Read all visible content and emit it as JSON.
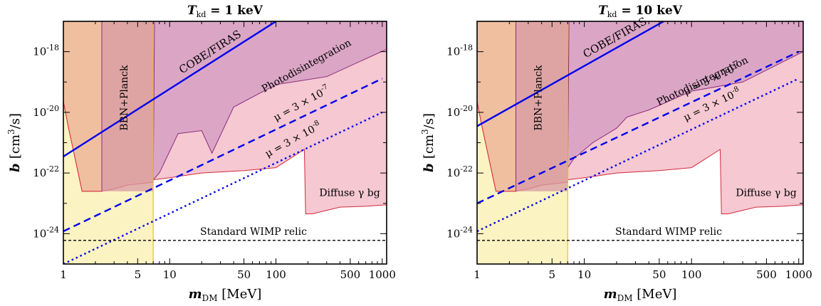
{
  "chart_data": [
    {
      "type": "area",
      "title": "T_kd = 1 keV",
      "xlabel": "m_DM [MeV]",
      "ylabel": "b [cm^3/s]",
      "xscale": "log",
      "yscale": "log",
      "xlim": [
        1,
        1100
      ],
      "ylim": [
        1e-25,
        1e-17
      ],
      "xticks": [
        1,
        5,
        10,
        50,
        100,
        500,
        1000
      ],
      "yticks": [
        {
          "value": 1e-24,
          "label": "10^-24"
        },
        {
          "value": 1e-22,
          "label": "10^-22"
        },
        {
          "value": 1e-20,
          "label": "10^-20"
        },
        {
          "value": 1e-18,
          "label": "10^-18"
        }
      ],
      "regions": [
        {
          "name": "yellow",
          "color": "#fbf3c2",
          "x": [
            1,
            7
          ],
          "y_top": 1e-17
        },
        {
          "name": "orange",
          "color": "#efbfa0",
          "points": [
            [
              1,
              1e-17
            ],
            [
              7,
              1e-17
            ],
            [
              7,
              5e-23
            ],
            [
              4,
              4e-23
            ],
            [
              3,
              3e-23
            ],
            [
              2.3,
              2.5e-23
            ],
            [
              1.5,
              2.5e-23
            ],
            [
              1.25,
              5e-22
            ],
            [
              1.12,
              3e-21
            ],
            [
              1,
              2.3e-20
            ]
          ]
        },
        {
          "name": "BBN+Planck",
          "color": "#d89ba6",
          "x": [
            2.3,
            7
          ],
          "y_top": 1e-17
        },
        {
          "name": "Photodisintegration",
          "color": "#d6a0c4",
          "points": [
            [
              7.2,
              1e-17
            ],
            [
              1100,
              1e-17
            ],
            [
              1100,
              1.2e-18
            ],
            [
              300,
              1.5e-19
            ],
            [
              100,
              8.2e-20
            ],
            [
              40,
              1.5e-20
            ],
            [
              25,
              4.5e-22
            ],
            [
              20,
              2.5e-21
            ],
            [
              12,
              2e-21
            ],
            [
              8,
              1e-22
            ],
            [
              7,
              6e-23
            ]
          ]
        },
        {
          "name": "Diffuse γ bg",
          "color": "#f5c8d2",
          "points": [
            [
              1,
              1e-17
            ],
            [
              1100,
              1e-17
            ],
            [
              1100,
              9e-24
            ],
            [
              700,
              8e-24
            ],
            [
              400,
              7.5e-24
            ],
            [
              220,
              4.5e-24
            ],
            [
              190,
              4.5e-24
            ],
            [
              185,
              6e-22
            ],
            [
              100,
              1.5e-22
            ],
            [
              50,
              1.2e-22
            ],
            [
              20,
              1e-22
            ],
            [
              10,
              7e-23
            ],
            [
              7,
              6e-23
            ],
            [
              4,
              4e-23
            ],
            [
              3,
              3e-23
            ],
            [
              2.3,
              2.5e-23
            ],
            [
              1.5,
              2.5e-23
            ],
            [
              1.25,
              5e-22
            ],
            [
              1.12,
              3e-21
            ],
            [
              1,
              2.3e-20
            ]
          ]
        }
      ],
      "lines": [
        {
          "name": "COBE/FIRAS",
          "style": "solid",
          "color": "#0000ee",
          "x": [
            1,
            100
          ],
          "y": [
            3.5e-22,
            1e-17
          ]
        },
        {
          "name": "μ = 3 × 10^-7",
          "style": "dashed",
          "color": "#0000ee",
          "x": [
            1,
            1000
          ],
          "y": [
            1.2e-24,
            1.3e-19
          ]
        },
        {
          "name": "μ = 3 × 10^-8",
          "style": "dotted",
          "color": "#0000ee",
          "x": [
            1,
            1000
          ],
          "y": [
            1e-25,
            1e-20
          ]
        },
        {
          "name": "Standard WIMP relic",
          "style": "dashed",
          "color": "#000000",
          "x": [
            1,
            1100
          ],
          "y": [
            6e-25,
            6e-25
          ]
        }
      ],
      "labels": [
        "COBE/FIRAS",
        "BBN+Planck",
        "Photodisintegration",
        "μ = 3 × 10^-7",
        "μ = 3 × 10^-8",
        "Diffuse γ bg",
        "Standard WIMP relic"
      ]
    },
    {
      "type": "area",
      "title": "T_kd = 10 keV",
      "xlabel": "m_DM [MeV]",
      "ylabel": "b [cm^3/s]",
      "xscale": "log",
      "yscale": "log",
      "xlim": [
        1,
        1100
      ],
      "ylim": [
        1e-25,
        1e-17
      ],
      "xticks": [
        1,
        5,
        10,
        50,
        100,
        500,
        1000
      ],
      "yticks": [
        {
          "value": 1e-24,
          "label": "10^-24"
        },
        {
          "value": 1e-22,
          "label": "10^-22"
        },
        {
          "value": 1e-20,
          "label": "10^-20"
        },
        {
          "value": 1e-18,
          "label": "10^-18"
        }
      ],
      "regions": [
        {
          "name": "yellow",
          "color": "#fbf3c2",
          "x": [
            1,
            7
          ],
          "y_top": 1e-17
        },
        {
          "name": "orange",
          "color": "#efbfa0",
          "points": [
            [
              1,
              1e-17
            ],
            [
              7,
              1e-17
            ],
            [
              7,
              5e-23
            ],
            [
              4,
              4e-23
            ],
            [
              3,
              3e-23
            ],
            [
              2.3,
              2.5e-23
            ],
            [
              1.5,
              2.5e-23
            ],
            [
              1.25,
              5e-22
            ],
            [
              1.12,
              3e-21
            ],
            [
              1,
              2.3e-20
            ]
          ]
        },
        {
          "name": "BBN+Planck",
          "color": "#d89ba6",
          "x": [
            2.3,
            7
          ],
          "y_top": 1e-17
        },
        {
          "name": "Photodisintegration",
          "color": "#d6a0c4",
          "points": [
            [
              7.2,
              1e-17
            ],
            [
              1100,
              1e-17
            ],
            [
              1100,
              1e-18
            ],
            [
              300,
              1e-19
            ],
            [
              100,
              5e-20
            ],
            [
              40,
              1.2e-20
            ],
            [
              25,
              7e-21
            ],
            [
              20,
              3e-21
            ],
            [
              12,
              1e-21
            ],
            [
              8,
              3e-22
            ],
            [
              7,
              1.5e-22
            ]
          ]
        },
        {
          "name": "Diffuse γ bg",
          "color": "#f5c8d2",
          "points": [
            [
              1,
              1e-17
            ],
            [
              1100,
              1e-17
            ],
            [
              1100,
              9e-24
            ],
            [
              700,
              8e-24
            ],
            [
              400,
              7.5e-24
            ],
            [
              220,
              4.5e-24
            ],
            [
              190,
              4.5e-24
            ],
            [
              185,
              6e-22
            ],
            [
              100,
              1.5e-22
            ],
            [
              50,
              1.2e-22
            ],
            [
              20,
              1e-22
            ],
            [
              10,
              7e-23
            ],
            [
              7,
              6e-23
            ],
            [
              4,
              4e-23
            ],
            [
              3,
              3e-23
            ],
            [
              2.3,
              2.5e-23
            ],
            [
              1.5,
              2.5e-23
            ],
            [
              1.25,
              5e-22
            ],
            [
              1.12,
              3e-21
            ],
            [
              1,
              2.3e-20
            ]
          ]
        }
      ],
      "lines": [
        {
          "name": "COBE/FIRAS",
          "style": "solid",
          "color": "#0000ee",
          "x": [
            1,
            55
          ],
          "y": [
            3.5e-21,
            1e-17
          ]
        },
        {
          "name": "μ = 3 × 10^-7",
          "style": "dashed",
          "color": "#0000ee",
          "x": [
            1,
            1000
          ],
          "y": [
            1e-23,
            1e-18
          ]
        },
        {
          "name": "μ = 3 × 10^-8",
          "style": "dotted",
          "color": "#0000ee",
          "x": [
            1,
            1000
          ],
          "y": [
            1.2e-24,
            1.3e-19
          ]
        },
        {
          "name": "Standard WIMP relic",
          "style": "dashed",
          "color": "#000000",
          "x": [
            1,
            1100
          ],
          "y": [
            6e-25,
            6e-25
          ]
        }
      ],
      "labels": [
        "COBE/FIRAS",
        "BBN+Planck",
        "Photodisintegration",
        "μ = 3 × 10^-7",
        "μ = 3 × 10^-8",
        "Diffuse γ bg",
        "Standard WIMP relic"
      ]
    }
  ]
}
